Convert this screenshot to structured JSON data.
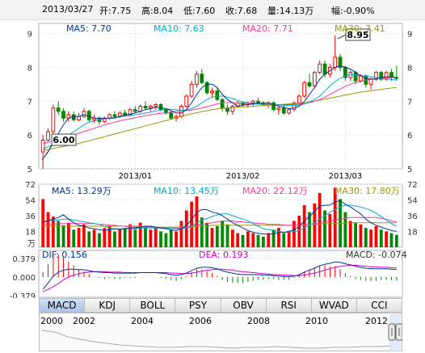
{
  "header": {
    "date": "2013/03/27",
    "open": "开:7.75",
    "high": "高:8.04",
    "low": "低:7.60",
    "close": "收:7.68",
    "volume": "量:14.13万",
    "change": "幅:-0.90%"
  },
  "price_legend": {
    "ma5": "MA5: 7.70",
    "ma10": "MA10: 7.63",
    "ma20": "MA20: 7.71",
    "ma30": "MA30: 7.41"
  },
  "volume_legend": {
    "ma5": "MA5: 13.29万",
    "ma10": "MA10: 13.45万",
    "ma20": "MA20: 22.12万",
    "ma30": "MA30: 17.80万"
  },
  "volume_unit": "万",
  "macd_legend": {
    "dif": "DIF: 0.156",
    "dea": "DEA: 0.193",
    "macd": "MACD: -0.074"
  },
  "annotations": {
    "high_label": "8.95",
    "low_label": "6.00"
  },
  "tabs": [
    "MACD",
    "KDJ",
    "BOLL",
    "PSY",
    "OBV",
    "RSI",
    "WVAD",
    "CCI"
  ],
  "navigator_years": [
    "2000",
    "2002",
    "2004",
    "2006",
    "2008",
    "2010",
    "2012"
  ],
  "colors": {
    "up": "#ff0000",
    "down": "#008800",
    "ma5": "#003399",
    "ma10": "#00aacc",
    "ma20": "#ff3399",
    "ma30": "#999900",
    "grid": "#e4e4e4"
  },
  "chart_data": [
    {
      "type": "candlestick",
      "x_labels": [
        "2013/01",
        "2013/02",
        "2013/03"
      ],
      "y_ticks": [
        5,
        6,
        7,
        8,
        9
      ],
      "ylim": [
        5,
        9.3
      ],
      "ohlc": [
        [
          5.5,
          6.0,
          5.0,
          5.85
        ],
        [
          5.85,
          6.2,
          5.8,
          6.1
        ],
        [
          6.1,
          6.9,
          6.0,
          6.8
        ],
        [
          6.8,
          7.0,
          6.6,
          6.7
        ],
        [
          6.7,
          6.8,
          6.4,
          6.5
        ],
        [
          6.5,
          6.7,
          6.4,
          6.6
        ],
        [
          6.6,
          6.7,
          6.4,
          6.45
        ],
        [
          6.45,
          6.65,
          6.4,
          6.55
        ],
        [
          6.55,
          6.8,
          6.5,
          6.7
        ],
        [
          6.7,
          6.75,
          6.4,
          6.45
        ],
        [
          6.45,
          6.6,
          6.35,
          6.5
        ],
        [
          6.5,
          6.55,
          6.3,
          6.4
        ],
        [
          6.4,
          6.55,
          6.35,
          6.5
        ],
        [
          6.5,
          6.65,
          6.45,
          6.6
        ],
        [
          6.6,
          6.7,
          6.5,
          6.55
        ],
        [
          6.55,
          6.7,
          6.5,
          6.65
        ],
        [
          6.65,
          6.75,
          6.55,
          6.6
        ],
        [
          6.6,
          6.8,
          6.55,
          6.75
        ],
        [
          6.75,
          6.85,
          6.65,
          6.7
        ],
        [
          6.7,
          6.9,
          6.65,
          6.85
        ],
        [
          6.85,
          7.0,
          6.75,
          6.8
        ],
        [
          6.8,
          6.9,
          6.7,
          6.85
        ],
        [
          6.85,
          6.95,
          6.75,
          6.9
        ],
        [
          6.9,
          6.95,
          6.7,
          6.75
        ],
        [
          6.75,
          6.8,
          6.6,
          6.65
        ],
        [
          6.65,
          6.7,
          6.45,
          6.5
        ],
        [
          6.5,
          6.6,
          6.4,
          6.55
        ],
        [
          6.55,
          6.9,
          6.5,
          6.85
        ],
        [
          6.85,
          7.2,
          6.8,
          7.15
        ],
        [
          7.15,
          7.6,
          7.1,
          7.5
        ],
        [
          7.5,
          7.9,
          7.4,
          7.8
        ],
        [
          7.8,
          7.95,
          7.5,
          7.55
        ],
        [
          7.55,
          7.6,
          7.2,
          7.25
        ],
        [
          7.25,
          7.4,
          7.1,
          7.3
        ],
        [
          7.3,
          7.4,
          7.0,
          7.05
        ],
        [
          7.05,
          7.1,
          6.7,
          6.8
        ],
        [
          6.8,
          6.9,
          6.6,
          6.7
        ],
        [
          6.7,
          6.9,
          6.6,
          6.85
        ],
        [
          6.85,
          7.0,
          6.8,
          6.95
        ],
        [
          6.95,
          7.0,
          6.85,
          6.9
        ],
        [
          6.9,
          7.0,
          6.8,
          6.95
        ],
        [
          6.95,
          7.05,
          6.85,
          7.0
        ],
        [
          7.0,
          7.1,
          6.9,
          6.95
        ],
        [
          6.95,
          7.0,
          6.85,
          6.9
        ],
        [
          6.9,
          7.0,
          6.8,
          6.95
        ],
        [
          6.95,
          7.0,
          6.7,
          6.75
        ],
        [
          6.75,
          6.85,
          6.6,
          6.8
        ],
        [
          6.8,
          6.9,
          6.6,
          6.65
        ],
        [
          6.65,
          6.8,
          6.6,
          6.75
        ],
        [
          6.75,
          7.0,
          6.7,
          6.95
        ],
        [
          6.95,
          7.2,
          6.9,
          7.15
        ],
        [
          7.15,
          7.6,
          7.1,
          7.55
        ],
        [
          7.55,
          7.8,
          7.4,
          7.45
        ],
        [
          7.45,
          7.9,
          7.4,
          7.85
        ],
        [
          7.85,
          8.2,
          7.8,
          8.1
        ],
        [
          8.1,
          8.2,
          7.7,
          7.8
        ],
        [
          7.8,
          8.1,
          7.7,
          8.0
        ],
        [
          8.0,
          8.95,
          7.9,
          8.3
        ],
        [
          8.3,
          8.4,
          7.9,
          8.0
        ],
        [
          8.0,
          8.05,
          7.6,
          7.7
        ],
        [
          7.7,
          7.9,
          7.6,
          7.85
        ],
        [
          7.85,
          7.9,
          7.5,
          7.6
        ],
        [
          7.6,
          7.8,
          7.55,
          7.75
        ],
        [
          7.75,
          7.8,
          7.4,
          7.5
        ],
        [
          7.5,
          7.7,
          7.35,
          7.65
        ],
        [
          7.65,
          7.9,
          7.6,
          7.85
        ],
        [
          7.85,
          7.9,
          7.6,
          7.65
        ],
        [
          7.65,
          7.9,
          7.6,
          7.85
        ],
        [
          7.85,
          7.95,
          7.6,
          7.7
        ],
        [
          7.7,
          8.04,
          7.6,
          7.68
        ]
      ],
      "ma5": [
        5.3,
        5.5,
        5.8,
        6.05,
        6.3,
        6.5,
        6.55,
        6.55,
        6.6,
        6.55,
        6.5,
        6.5,
        6.48,
        6.5,
        6.5,
        6.55,
        6.58,
        6.62,
        6.65,
        6.7,
        6.75,
        6.78,
        6.82,
        6.8,
        6.78,
        6.72,
        6.65,
        6.65,
        6.75,
        6.95,
        7.2,
        7.4,
        7.5,
        7.5,
        7.4,
        7.2,
        7.05,
        6.95,
        6.85,
        6.88,
        6.9,
        6.92,
        6.94,
        6.94,
        6.94,
        6.9,
        6.86,
        6.82,
        6.78,
        6.8,
        6.85,
        7.0,
        7.2,
        7.4,
        7.65,
        7.8,
        7.9,
        8.0,
        8.05,
        8.0,
        7.95,
        7.85,
        7.75,
        7.68,
        7.65,
        7.66,
        7.7,
        7.72,
        7.72,
        7.7
      ],
      "ma10": [
        5.6,
        5.65,
        5.72,
        5.8,
        5.9,
        6.0,
        6.1,
        6.2,
        6.3,
        6.38,
        6.42,
        6.46,
        6.48,
        6.5,
        6.52,
        6.54,
        6.56,
        6.58,
        6.6,
        6.62,
        6.65,
        6.68,
        6.71,
        6.74,
        6.76,
        6.76,
        6.75,
        6.73,
        6.74,
        6.78,
        6.85,
        6.95,
        7.05,
        7.12,
        7.15,
        7.15,
        7.12,
        7.08,
        7.02,
        6.98,
        6.95,
        6.93,
        6.92,
        6.91,
        6.9,
        6.9,
        6.89,
        6.88,
        6.87,
        6.87,
        6.88,
        6.92,
        6.98,
        7.05,
        7.15,
        7.3,
        7.45,
        7.58,
        7.68,
        7.75,
        7.78,
        7.78,
        7.76,
        7.74,
        7.72,
        7.7,
        7.68,
        7.66,
        7.64,
        7.63
      ],
      "ma20": [
        5.75,
        5.78,
        5.82,
        5.86,
        5.9,
        5.95,
        6.0,
        6.05,
        6.1,
        6.15,
        6.2,
        6.25,
        6.3,
        6.34,
        6.38,
        6.42,
        6.45,
        6.48,
        6.51,
        6.54,
        6.57,
        6.6,
        6.62,
        6.64,
        6.66,
        6.68,
        6.7,
        6.71,
        6.72,
        6.74,
        6.77,
        6.8,
        6.84,
        6.88,
        6.92,
        6.95,
        6.96,
        6.96,
        6.95,
        6.94,
        6.93,
        6.92,
        6.91,
        6.9,
        6.9,
        6.9,
        6.9,
        6.9,
        6.9,
        6.9,
        6.91,
        6.93,
        6.96,
        7.0,
        7.05,
        7.12,
        7.2,
        7.28,
        7.36,
        7.44,
        7.5,
        7.55,
        7.59,
        7.62,
        7.65,
        7.67,
        7.68,
        7.69,
        7.7,
        7.71
      ],
      "ma30": [
        5.55,
        5.57,
        5.6,
        5.63,
        5.66,
        5.69,
        5.72,
        5.75,
        5.79,
        5.83,
        5.87,
        5.91,
        5.95,
        5.99,
        6.03,
        6.07,
        6.11,
        6.15,
        6.19,
        6.23,
        6.27,
        6.31,
        6.35,
        6.39,
        6.43,
        6.47,
        6.51,
        6.55,
        6.59,
        6.63,
        6.66,
        6.69,
        6.72,
        6.75,
        6.77,
        6.79,
        6.8,
        6.81,
        6.82,
        6.83,
        6.84,
        6.85,
        6.86,
        6.87,
        6.88,
        6.89,
        6.9,
        6.91,
        6.92,
        6.93,
        6.94,
        6.96,
        6.98,
        7.0,
        7.03,
        7.06,
        7.09,
        7.12,
        7.15,
        7.18,
        7.21,
        7.24,
        7.27,
        7.29,
        7.31,
        7.33,
        7.35,
        7.37,
        7.39,
        7.41
      ]
    },
    {
      "type": "bar",
      "y_ticks": [
        18,
        36,
        54,
        72
      ],
      "ylim": [
        0,
        72
      ],
      "volume": [
        55,
        40,
        35,
        30,
        25,
        28,
        20,
        22,
        26,
        18,
        20,
        16,
        22,
        24,
        18,
        20,
        22,
        26,
        20,
        28,
        24,
        20,
        22,
        18,
        16,
        20,
        18,
        30,
        42,
        52,
        58,
        34,
        28,
        22,
        24,
        30,
        26,
        20,
        16,
        14,
        18,
        16,
        14,
        12,
        16,
        20,
        22,
        16,
        18,
        30,
        36,
        48,
        40,
        50,
        62,
        42,
        38,
        68,
        55,
        40,
        30,
        28,
        26,
        22,
        20,
        24,
        20,
        18,
        16,
        14
      ],
      "ma5": [
        28,
        30,
        32,
        34,
        37,
        32,
        28,
        25,
        24,
        22,
        21,
        20,
        19,
        20,
        21,
        20,
        21,
        22,
        22,
        23,
        24,
        24,
        23,
        22,
        21,
        20,
        19,
        21,
        25,
        31,
        40,
        43,
        43,
        40,
        39,
        36,
        32,
        28,
        25,
        22,
        19,
        17,
        16,
        15,
        15,
        15,
        17,
        17,
        18,
        20,
        24,
        30,
        35,
        41,
        47,
        48,
        48,
        52,
        53,
        49,
        46,
        42,
        38,
        32,
        28,
        25,
        23,
        21,
        19,
        18
      ],
      "ma10": [
        30,
        30,
        31,
        31,
        32,
        32,
        31,
        30,
        29,
        28,
        27,
        26,
        24,
        22,
        21,
        21,
        21,
        21,
        21,
        22,
        22,
        22,
        22,
        22,
        22,
        22,
        21,
        21,
        22,
        24,
        28,
        31,
        33,
        35,
        37,
        38,
        38,
        36,
        34,
        32,
        30,
        27,
        24,
        21,
        20,
        19,
        18,
        17,
        17,
        18,
        19,
        22,
        25,
        28,
        32,
        36,
        40,
        43,
        46,
        48,
        48,
        47,
        46,
        44,
        42,
        39,
        35,
        31,
        27,
        24
      ],
      "ma20": [
        26,
        26,
        26,
        27,
        27,
        27,
        27,
        27,
        27,
        27,
        27,
        26,
        26,
        25,
        25,
        24,
        24,
        23,
        23,
        23,
        23,
        23,
        23,
        22,
        22,
        22,
        22,
        22,
        23,
        24,
        25,
        26,
        27,
        28,
        29,
        30,
        30,
        30,
        29,
        29,
        28,
        28,
        27,
        27,
        26,
        26,
        26,
        25,
        25,
        25,
        25,
        25,
        26,
        27,
        28,
        29,
        30,
        31,
        32,
        33,
        34,
        34,
        34,
        34,
        34,
        34,
        33,
        32,
        30,
        29
      ],
      "ma30": [
        24,
        24,
        24,
        24,
        24,
        24,
        24,
        24,
        24,
        24,
        24,
        24,
        24,
        24,
        24,
        24,
        24,
        24,
        24,
        24,
        23,
        23,
        23,
        23,
        23,
        23,
        23,
        23,
        23,
        23,
        24,
        24,
        24,
        25,
        25,
        25,
        25,
        25,
        25,
        25,
        25,
        25,
        25,
        25,
        25,
        25,
        25,
        25,
        25,
        25,
        25,
        25,
        26,
        26,
        26,
        27,
        27,
        27,
        27,
        28,
        28,
        28,
        28,
        28,
        28,
        28,
        28,
        28,
        28,
        28
      ]
    },
    {
      "type": "line",
      "y_ticks": [
        0.379,
        0.0,
        -0.379
      ],
      "y_tick_labels": [
        "0.379",
        "0.000",
        "-0.379"
      ],
      "ylim": [
        -0.379,
        0.379
      ],
      "dif": [
        -0.25,
        -0.12,
        0.02,
        0.1,
        0.14,
        0.16,
        0.16,
        0.15,
        0.15,
        0.13,
        0.11,
        0.1,
        0.09,
        0.09,
        0.08,
        0.08,
        0.08,
        0.08,
        0.08,
        0.09,
        0.09,
        0.09,
        0.09,
        0.08,
        0.07,
        0.05,
        0.04,
        0.05,
        0.08,
        0.13,
        0.18,
        0.2,
        0.2,
        0.19,
        0.17,
        0.13,
        0.1,
        0.08,
        0.06,
        0.05,
        0.05,
        0.05,
        0.05,
        0.04,
        0.04,
        0.03,
        0.02,
        0.01,
        0.01,
        0.02,
        0.05,
        0.1,
        0.14,
        0.18,
        0.23,
        0.26,
        0.28,
        0.31,
        0.3,
        0.27,
        0.25,
        0.22,
        0.2,
        0.18,
        0.17,
        0.17,
        0.17,
        0.17,
        0.16,
        0.156
      ],
      "dea": [
        -0.3,
        -0.25,
        -0.2,
        -0.13,
        -0.06,
        0.0,
        0.04,
        0.07,
        0.09,
        0.1,
        0.11,
        0.11,
        0.11,
        0.1,
        0.1,
        0.1,
        0.09,
        0.09,
        0.09,
        0.09,
        0.09,
        0.09,
        0.09,
        0.09,
        0.09,
        0.08,
        0.08,
        0.07,
        0.07,
        0.08,
        0.1,
        0.12,
        0.14,
        0.15,
        0.16,
        0.16,
        0.15,
        0.14,
        0.12,
        0.11,
        0.1,
        0.09,
        0.08,
        0.07,
        0.06,
        0.05,
        0.05,
        0.04,
        0.04,
        0.03,
        0.03,
        0.04,
        0.06,
        0.08,
        0.11,
        0.14,
        0.17,
        0.2,
        0.22,
        0.23,
        0.24,
        0.24,
        0.23,
        0.22,
        0.21,
        0.21,
        0.2,
        0.2,
        0.19,
        0.193
      ],
      "macd": [
        0.1,
        0.26,
        0.44,
        0.46,
        0.4,
        0.32,
        0.24,
        0.16,
        0.12,
        0.06,
        0.0,
        -0.02,
        -0.04,
        -0.02,
        -0.04,
        -0.04,
        -0.02,
        -0.02,
        -0.02,
        0.0,
        0.0,
        0.0,
        0.0,
        -0.02,
        -0.04,
        -0.06,
        -0.08,
        -0.04,
        0.02,
        0.1,
        0.16,
        0.16,
        0.12,
        0.08,
        0.02,
        -0.06,
        -0.1,
        -0.12,
        -0.12,
        -0.12,
        -0.1,
        -0.08,
        -0.06,
        -0.06,
        -0.04,
        -0.04,
        -0.06,
        -0.06,
        -0.06,
        -0.02,
        0.04,
        0.12,
        0.16,
        0.2,
        0.24,
        0.24,
        0.22,
        0.22,
        0.16,
        0.08,
        0.02,
        -0.04,
        -0.06,
        -0.08,
        -0.08,
        -0.08,
        -0.06,
        -0.06,
        -0.06,
        -0.074
      ]
    }
  ]
}
